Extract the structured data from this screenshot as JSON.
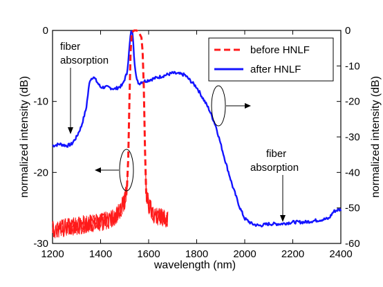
{
  "chart_data": {
    "type": "line",
    "xlabel": "wavelength (nm)",
    "ylabel_left": "normalized intensity (dB)",
    "ylabel_right": "normalized intensity (dB)",
    "xlim": [
      1200,
      2400
    ],
    "ylim_left": [
      -30,
      0
    ],
    "ylim_right": [
      -60,
      0
    ],
    "x_ticks": [
      "1200",
      "1400",
      "1600",
      "1800",
      "2000",
      "2200",
      "2400"
    ],
    "y_ticks_left": [
      "-30",
      "-20",
      "-10",
      "0"
    ],
    "y_ticks_right": [
      "-60",
      "-50",
      "-40",
      "-30",
      "-20",
      "-10",
      "0"
    ],
    "legend_position": "top-right",
    "colors": {
      "before": "#ff1a1a",
      "after": "#1414ff"
    },
    "series": [
      {
        "name": "before HNLF",
        "axis": "left",
        "style": "dashed",
        "x": [
          1200,
          1250,
          1300,
          1350,
          1400,
          1450,
          1480,
          1500,
          1510,
          1515,
          1520,
          1525,
          1530,
          1540,
          1550,
          1560,
          1570,
          1575,
          1580,
          1585,
          1590,
          1600,
          1620,
          1650,
          1680
        ],
        "y": [
          -28,
          -27.8,
          -27.5,
          -27.2,
          -27,
          -26.5,
          -25.5,
          -24,
          -22,
          -18,
          -10,
          -3,
          -0.3,
          0,
          0,
          -0.3,
          -1,
          -3,
          -8,
          -17,
          -23,
          -24.5,
          -26,
          -26.3,
          -26.5
        ]
      },
      {
        "name": "after HNLF",
        "axis": "right",
        "style": "solid",
        "x": [
          1200,
          1230,
          1260,
          1280,
          1300,
          1320,
          1340,
          1355,
          1370,
          1400,
          1430,
          1460,
          1490,
          1510,
          1520,
          1525,
          1530,
          1535,
          1540,
          1550,
          1560,
          1570,
          1600,
          1650,
          1700,
          1750,
          1800,
          1850,
          1880,
          1900,
          1920,
          1950,
          1980,
          2000,
          2030,
          2060,
          2100,
          2150,
          2200,
          2250,
          2300,
          2350,
          2370,
          2390,
          2400
        ],
        "y": [
          -32.5,
          -32,
          -32.5,
          -32,
          -30,
          -27,
          -22,
          -14,
          -13,
          -16,
          -16,
          -16.5,
          -15.5,
          -12,
          -5,
          -1,
          0,
          -2,
          -8,
          -14,
          -15,
          -14.5,
          -14,
          -13,
          -12,
          -12.5,
          -16,
          -22,
          -27,
          -32,
          -37,
          -44,
          -50,
          -53,
          -54.5,
          -55,
          -54.5,
          -54.5,
          -54,
          -54,
          -53.5,
          -53,
          -51,
          -50.5,
          -50.5
        ]
      }
    ],
    "annotations": {
      "left_absorption": [
        "fiber",
        "absorption"
      ],
      "right_absorption": [
        "fiber",
        "absorption"
      ]
    }
  }
}
